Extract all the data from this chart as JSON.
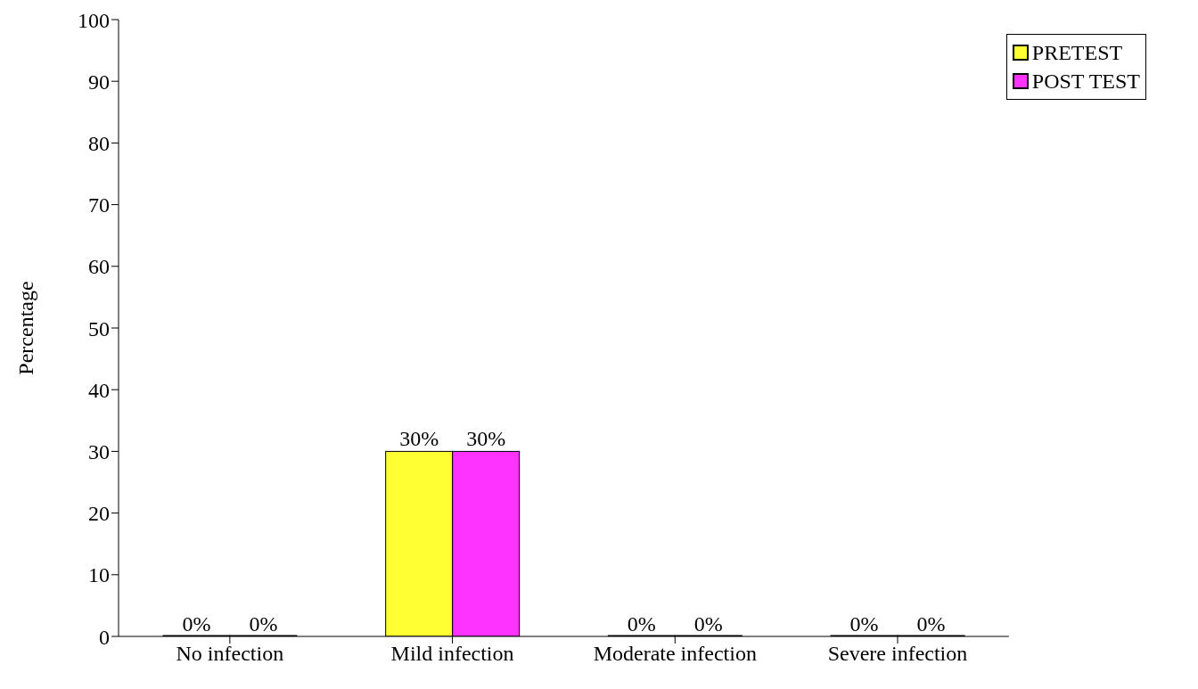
{
  "chart_data": {
    "type": "bar",
    "ylabel": "Percentage",
    "categories": [
      "No infection",
      "Mild infection",
      "Moderate infection",
      "Severe infection"
    ],
    "series": [
      {
        "name": "PRETEST",
        "color": "#ffff33",
        "values": [
          0,
          30,
          0,
          0
        ],
        "value_labels": [
          "0%",
          "30%",
          "0%",
          "0%"
        ]
      },
      {
        "name": "POST TEST",
        "color": "#ff33ff",
        "values": [
          0,
          30,
          0,
          0
        ],
        "value_labels": [
          "0%",
          "30%",
          "0%",
          "0%"
        ]
      }
    ],
    "ylim": [
      0,
      100
    ],
    "yticks": [
      0,
      10,
      20,
      30,
      40,
      50,
      60,
      70,
      80,
      90,
      100
    ],
    "grid": false,
    "legend": "top right"
  }
}
